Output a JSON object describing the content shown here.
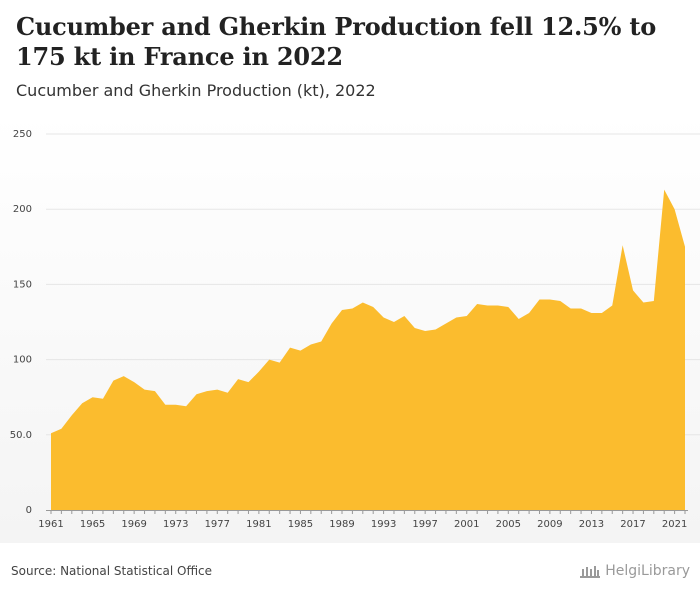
{
  "header": {
    "title": "Cucumber and Gherkin Production fell 12.5% to 175 kt in France in 2022",
    "subtitle": "Cucumber and Gherkin Production (kt), 2022"
  },
  "footer": {
    "source": "Source: National Statistical Office",
    "brand": "HelgiLibrary"
  },
  "colors": {
    "area": "#fbbc2e",
    "grid": "#e6e6e6",
    "axis": "#999999"
  },
  "chart_data": {
    "type": "area",
    "title": "Cucumber and Gherkin Production fell 12.5% to 175 kt in France in 2022",
    "subtitle": "Cucumber and Gherkin Production (kt), 2022",
    "xlabel": "",
    "ylabel": "",
    "ylim": [
      0,
      250
    ],
    "xlim": [
      1961,
      2022
    ],
    "y_ticks": [
      0,
      50,
      100,
      150,
      200,
      250
    ],
    "y_tick_labels": [
      "0",
      "50.0",
      "100",
      "150",
      "200",
      "250"
    ],
    "x_ticks": [
      1961,
      1965,
      1969,
      1973,
      1977,
      1981,
      1985,
      1989,
      1993,
      1997,
      2001,
      2005,
      2009,
      2013,
      2017,
      2021
    ],
    "grid": true,
    "legend": "none",
    "series": [
      {
        "x": [
          1961,
          1962,
          1963,
          1964,
          1965,
          1966,
          1967,
          1968,
          1969,
          1970,
          1971,
          1972,
          1973,
          1974,
          1975,
          1976,
          1977,
          1978,
          1979,
          1980,
          1981,
          1982,
          1983,
          1984,
          1985,
          1986,
          1987,
          1988,
          1989,
          1990,
          1991,
          1992,
          1993,
          1994,
          1995,
          1996,
          1997,
          1998,
          1999,
          2000,
          2001,
          2002,
          2003,
          2004,
          2005,
          2006,
          2007,
          2008,
          2009,
          2010,
          2011,
          2012,
          2013,
          2014,
          2015,
          2016,
          2017,
          2018,
          2019,
          2020,
          2021,
          2022
        ],
        "values": [
          51,
          54,
          63,
          71,
          75,
          74,
          86,
          89,
          85,
          80,
          79,
          70,
          70,
          69,
          77,
          79,
          80,
          78,
          87,
          85,
          92,
          100,
          98,
          108,
          106,
          110,
          112,
          124,
          133,
          134,
          138,
          135,
          128,
          125,
          129,
          121,
          119,
          120,
          124,
          128,
          129,
          137,
          136,
          136,
          135,
          127,
          131,
          140,
          140,
          139,
          134,
          134,
          131,
          131,
          136,
          176,
          146,
          138,
          139,
          213,
          200,
          175
        ]
      }
    ]
  }
}
